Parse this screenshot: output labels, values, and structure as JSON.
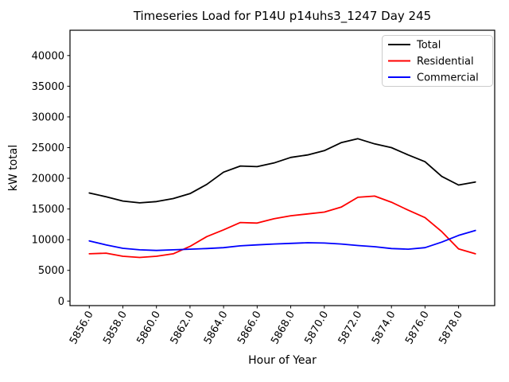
{
  "figure": {
    "title": "Timeseries Load for P14U p14uhs3_1247  Day 245"
  },
  "chart_data": {
    "type": "line",
    "title": "Timeseries Load for P14U p14uhs3_1247  Day 245",
    "xlabel": "Hour of Year",
    "ylabel": "kW total",
    "grid": false,
    "legend_position": "upper right",
    "xlim": [
      5854.85,
      5880.15
    ],
    "ylim": [
      -740,
      44120
    ],
    "x": [
      5856,
      5857,
      5858,
      5859,
      5860,
      5861,
      5862,
      5863,
      5864,
      5865,
      5866,
      5867,
      5868,
      5869,
      5870,
      5871,
      5872,
      5873,
      5874,
      5875,
      5876,
      5877,
      5878,
      5879
    ],
    "series": [
      {
        "name": "Total",
        "color": "#000000",
        "values": [
          17600,
          17000,
          16300,
          16000,
          16200,
          16700,
          17500,
          19000,
          21000,
          22000,
          21900,
          22500,
          23400,
          23800,
          24500,
          25800,
          26450,
          25600,
          25000,
          23800,
          22700,
          20300,
          18900,
          19400
        ]
      },
      {
        "name": "Residential",
        "color": "#ff0000",
        "values": [
          7700,
          7800,
          7300,
          7100,
          7300,
          7700,
          8900,
          10500,
          11600,
          12800,
          12700,
          13400,
          13900,
          14200,
          14500,
          15300,
          16900,
          17100,
          16100,
          14800,
          13600,
          11300,
          8500,
          7700
        ]
      },
      {
        "name": "Commercial",
        "color": "#0000ff",
        "values": [
          9800,
          9150,
          8600,
          8350,
          8250,
          8350,
          8450,
          8550,
          8700,
          9000,
          9150,
          9300,
          9400,
          9500,
          9450,
          9300,
          9050,
          8850,
          8550,
          8450,
          8700,
          9600,
          10700,
          11500
        ]
      }
    ],
    "xticks": {
      "values": [
        5856,
        5858,
        5860,
        5862,
        5864,
        5866,
        5868,
        5870,
        5872,
        5874,
        5876,
        5878
      ],
      "labels": [
        "5856.0",
        "5858.0",
        "5860.0",
        "5862.0",
        "5864.0",
        "5866.0",
        "5868.0",
        "5870.0",
        "5872.0",
        "5874.0",
        "5876.0",
        "5878.0"
      ]
    },
    "yticks": {
      "values": [
        0,
        5000,
        10000,
        15000,
        20000,
        25000,
        30000,
        35000,
        40000
      ],
      "labels": [
        "0",
        "5000",
        "10000",
        "15000",
        "20000",
        "25000",
        "30000",
        "35000",
        "40000"
      ]
    },
    "legend": {
      "border_color": "#cccccc",
      "background": "#ffffff"
    }
  }
}
